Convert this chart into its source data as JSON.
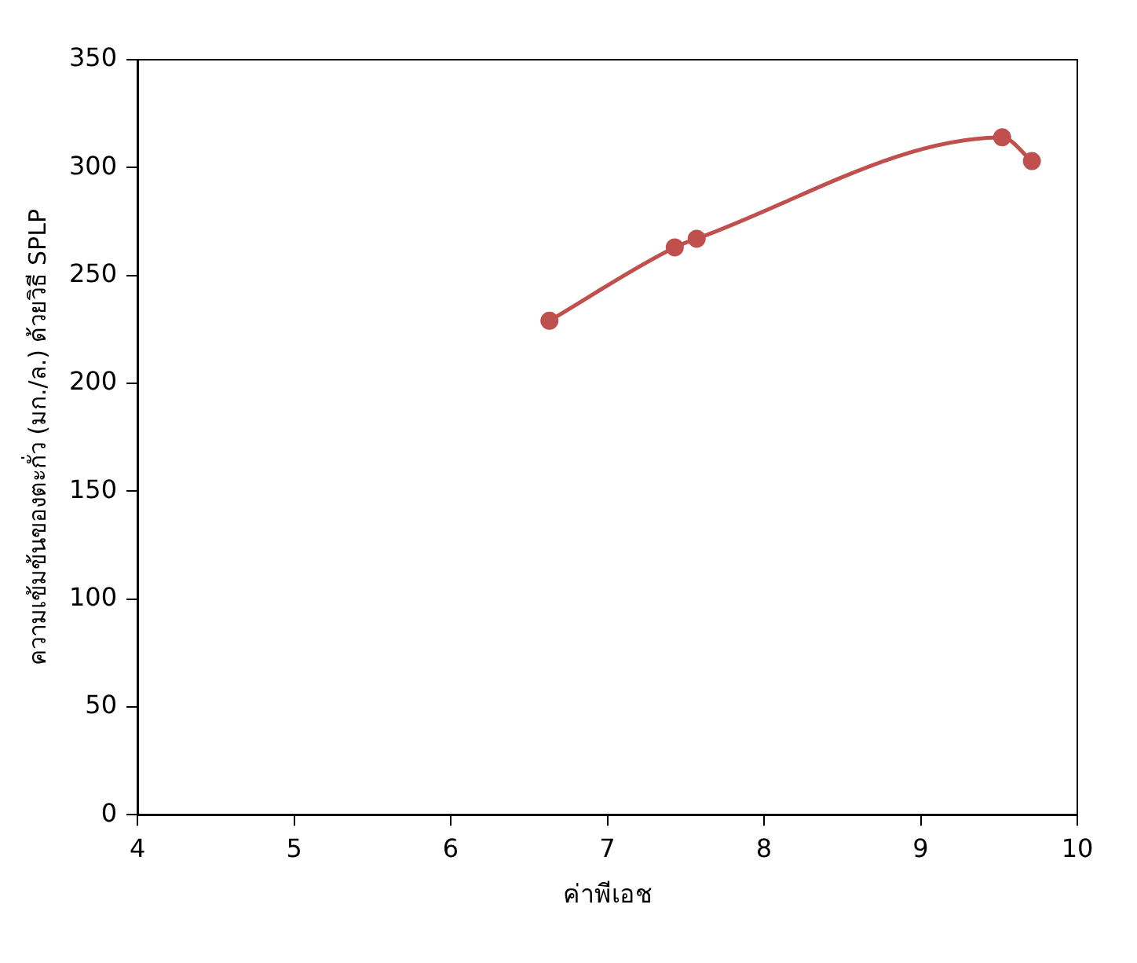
{
  "chart_data": {
    "type": "line",
    "xlabel": "ค่าพีเอช",
    "ylabel": "ความเข้มข้นของตะกั่ว (มก./ล.) ด้วยวิธี SPLP",
    "x": [
      6.63,
      7.43,
      7.57,
      9.52,
      9.71
    ],
    "series": [
      {
        "color": "#c0504d",
        "values": [
          229,
          263,
          267,
          314,
          303
        ]
      }
    ],
    "xlim": [
      4,
      10
    ],
    "xticks": [
      4,
      5,
      6,
      7,
      8,
      9,
      10
    ],
    "ylim": [
      0,
      350
    ],
    "yticks": [
      0,
      50,
      100,
      150,
      200,
      250,
      300,
      350
    ],
    "grid": false,
    "legend": false,
    "marker": "circle",
    "line_style": "solid"
  }
}
